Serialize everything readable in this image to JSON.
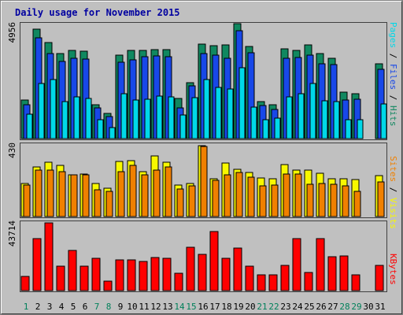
{
  "chart_data": {
    "type": "bar",
    "title": "Daily usage for November 2015",
    "categories": [
      "1",
      "2",
      "3",
      "4",
      "5",
      "6",
      "7",
      "8",
      "9",
      "10",
      "11",
      "12",
      "13",
      "14",
      "15",
      "16",
      "17",
      "18",
      "19",
      "20",
      "21",
      "22",
      "23",
      "24",
      "25",
      "26",
      "27",
      "28",
      "29",
      "30",
      "31"
    ],
    "weekend_days": [
      "1",
      "7",
      "8",
      "14",
      "15",
      "21",
      "22",
      "28",
      "29"
    ],
    "panels": [
      {
        "id": "hits_files_pages",
        "ymax_label": "4956",
        "ylim": [
          0,
          4956
        ],
        "legend": [
          {
            "label": "Pages",
            "color": "#00d8e8"
          },
          {
            "label": "Files",
            "color": "#1848e8"
          },
          {
            "label": "Hits",
            "color": "#108860"
          }
        ],
        "separator": " / ",
        "series": [
          {
            "name": "Hits",
            "color": "#108860",
            "values": [
              1650,
              4730,
              4130,
              3660,
              3800,
              3760,
              1470,
              1070,
              3590,
              3810,
              3800,
              3850,
              3850,
              1740,
              2410,
              4090,
              4000,
              4050,
              4950,
              3970,
              1580,
              1450,
              3870,
              3800,
              4050,
              3650,
              3460,
              2000,
              1930,
              0,
              3230
            ]
          },
          {
            "name": "Files",
            "color": "#1848e8",
            "values": [
              1450,
              4340,
              3660,
              3310,
              3470,
              3430,
              1310,
              950,
              3300,
              3400,
              3530,
              3560,
              3520,
              1340,
              2270,
              3650,
              3610,
              3470,
              4660,
              3700,
              1430,
              1260,
              3450,
              3490,
              3590,
              3210,
              3200,
              1680,
              1700,
              0,
              3000
            ]
          },
          {
            "name": "Pages",
            "color": "#00d8e8",
            "values": [
              1050,
              2380,
              2530,
              1590,
              1800,
              1730,
              820,
              480,
              1920,
              1660,
              1710,
              1850,
              1810,
              1020,
              1780,
              2540,
              2220,
              2140,
              3060,
              1370,
              800,
              870,
              1790,
              1930,
              2360,
              1640,
              1580,
              800,
              820,
              0,
              1490
            ]
          }
        ]
      },
      {
        "id": "visits_sites",
        "ymax_label": "430",
        "ylim": [
          0,
          430
        ],
        "legend": [
          {
            "label": "Sites",
            "color": "#f08000"
          },
          {
            "label": "Visits",
            "color": "#f8f800"
          }
        ],
        "separator": " / ",
        "series": [
          {
            "name": "Visits",
            "color": "#f8f800",
            "values": [
              200,
              300,
              325,
              305,
              250,
              255,
              200,
              170,
              330,
              335,
              270,
              365,
              325,
              190,
              200,
              425,
              225,
              320,
              285,
              265,
              230,
              225,
              310,
              280,
              280,
              260,
              225,
              225,
              220,
              0,
              245
            ]
          },
          {
            "name": "Sites",
            "color": "#f08000",
            "values": [
              190,
              280,
              280,
              270,
              250,
              250,
              160,
              150,
              270,
              305,
              250,
              280,
              300,
              165,
              185,
              420,
              215,
              250,
              265,
              235,
              185,
              190,
              255,
              255,
              195,
              200,
              195,
              185,
              150,
              0,
              210
            ]
          }
        ]
      },
      {
        "id": "kbytes",
        "ymax_label": "43714",
        "ylim": [
          0,
          43714
        ],
        "legend": [
          {
            "label": "KBytes",
            "color": "#ff0000"
          }
        ],
        "separator": "",
        "series": [
          {
            "name": "KBytes",
            "color": "#ff0000",
            "values": [
              9280,
              33550,
              43700,
              15690,
              25850,
              15940,
              21060,
              6020,
              19750,
              19640,
              18910,
              21230,
              20750,
              11000,
              27770,
              23410,
              38140,
              21030,
              27550,
              15660,
              10420,
              10420,
              16510,
              33430,
              11600,
              33680,
              21790,
              22460,
              10080,
              0,
              16170
            ]
          }
        ]
      }
    ]
  }
}
